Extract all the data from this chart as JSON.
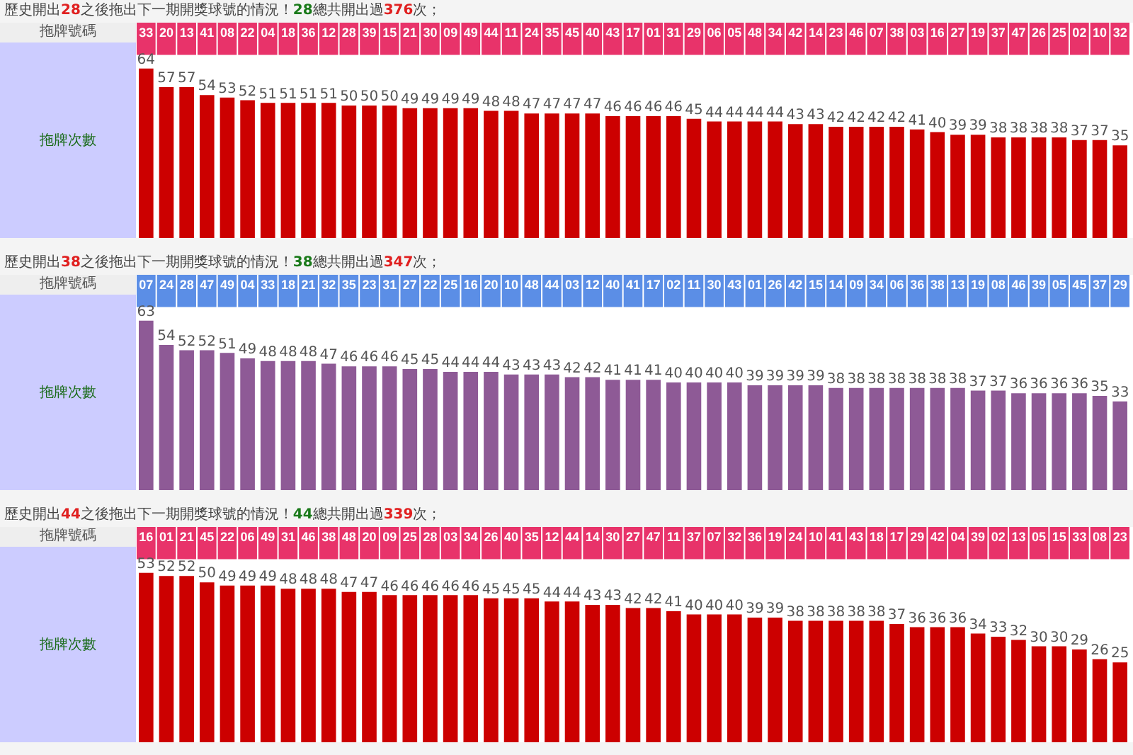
{
  "chart_data": [
    {
      "type": "bar",
      "title": "歷史開出28之後拖出下一期開獎球號的情況！28總共開出過376次；",
      "xlabel": "拖牌號碼",
      "ylabel": "拖牌次數",
      "color": "#cc0000",
      "data_labels": true,
      "tick_labels": "x",
      "categories": [
        "33",
        "20",
        "13",
        "41",
        "08",
        "22",
        "04",
        "18",
        "36",
        "12",
        "28",
        "39",
        "15",
        "21",
        "30",
        "09",
        "49",
        "44",
        "11",
        "24",
        "35",
        "45",
        "40",
        "43",
        "17",
        "01",
        "31",
        "29",
        "06",
        "05",
        "48",
        "34",
        "42",
        "14",
        "23",
        "46",
        "07",
        "38",
        "03",
        "16",
        "27",
        "19",
        "37",
        "47",
        "26",
        "25",
        "02",
        "10",
        "32"
      ],
      "values": [
        64,
        57,
        57,
        54,
        53,
        52,
        51,
        51,
        51,
        51,
        50,
        50,
        50,
        49,
        49,
        49,
        49,
        48,
        48,
        47,
        47,
        47,
        47,
        46,
        46,
        46,
        46,
        45,
        44,
        44,
        44,
        44,
        43,
        43,
        42,
        42,
        42,
        42,
        41,
        40,
        39,
        39,
        38,
        38,
        38,
        38,
        37,
        37,
        35
      ]
    },
    {
      "type": "bar",
      "title": "歷史開出38之後拖出下一期開獎球號的情況！38總共開出過347次；",
      "xlabel": "拖牌號碼",
      "ylabel": "拖牌次數",
      "color": "#8e5a96",
      "data_labels": true,
      "tick_labels": "x",
      "categories": [
        "07",
        "24",
        "28",
        "47",
        "49",
        "04",
        "33",
        "18",
        "21",
        "32",
        "35",
        "23",
        "31",
        "27",
        "22",
        "25",
        "16",
        "20",
        "10",
        "48",
        "44",
        "03",
        "12",
        "40",
        "41",
        "17",
        "02",
        "11",
        "30",
        "43",
        "01",
        "26",
        "42",
        "15",
        "14",
        "09",
        "34",
        "06",
        "36",
        "38",
        "13",
        "19",
        "08",
        "46",
        "39",
        "05",
        "45",
        "37",
        "29"
      ],
      "values": [
        63,
        54,
        52,
        52,
        51,
        49,
        48,
        48,
        48,
        47,
        46,
        46,
        46,
        45,
        45,
        44,
        44,
        44,
        43,
        43,
        43,
        42,
        42,
        41,
        41,
        41,
        40,
        40,
        40,
        40,
        39,
        39,
        39,
        39,
        38,
        38,
        38,
        38,
        38,
        38,
        38,
        37,
        37,
        36,
        36,
        36,
        36,
        35,
        33
      ]
    },
    {
      "type": "bar",
      "title": "歷史開出44之後拖出下一期開獎球號的情況！44總共開出過339次；",
      "xlabel": "拖牌號碼",
      "ylabel": "拖牌次數",
      "color": "#cc0000",
      "data_labels": true,
      "tick_labels": "x",
      "categories": [
        "16",
        "01",
        "21",
        "45",
        "22",
        "06",
        "49",
        "31",
        "46",
        "38",
        "48",
        "20",
        "09",
        "25",
        "28",
        "03",
        "34",
        "26",
        "40",
        "35",
        "12",
        "44",
        "14",
        "30",
        "27",
        "47",
        "11",
        "37",
        "07",
        "32",
        "36",
        "19",
        "24",
        "10",
        "41",
        "43",
        "18",
        "17",
        "29",
        "42",
        "04",
        "39",
        "02",
        "13",
        "05",
        "15",
        "33",
        "08",
        "23"
      ],
      "values": [
        53,
        52,
        52,
        50,
        49,
        49,
        49,
        48,
        48,
        48,
        47,
        47,
        46,
        46,
        46,
        46,
        46,
        45,
        45,
        45,
        44,
        44,
        43,
        43,
        42,
        42,
        41,
        40,
        40,
        40,
        39,
        39,
        38,
        38,
        38,
        38,
        38,
        37,
        36,
        36,
        36,
        34,
        33,
        32,
        30,
        30,
        29,
        26,
        25
      ]
    }
  ]
}
